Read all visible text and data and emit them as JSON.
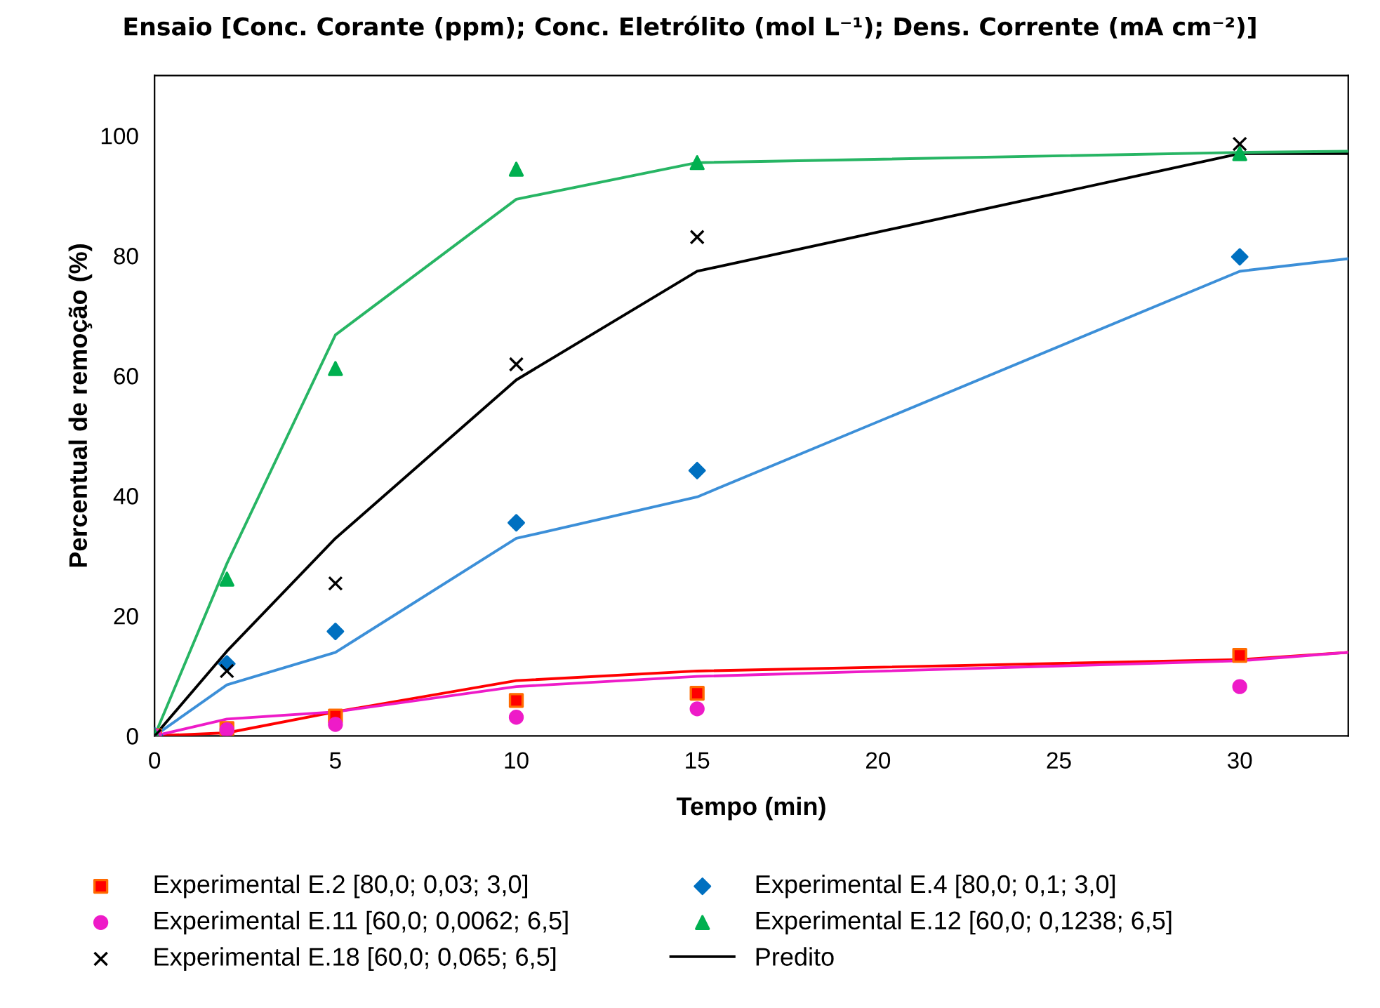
{
  "chart_data": {
    "type": "scatter",
    "title": "Ensaio [Conc. Corante (ppm); Conc. Eletrólito (mol L⁻¹); Dens. Corrente (mA cm⁻²)]",
    "xlabel": "Tempo (min)",
    "ylabel": "Percentual de remoção (%)",
    "xlim": [
      0,
      33
    ],
    "ylim": [
      0,
      110
    ],
    "xticks": [
      0,
      5,
      10,
      15,
      20,
      25,
      30
    ],
    "yticks": [
      0,
      20,
      40,
      60,
      80,
      100
    ],
    "grid": false,
    "legend": "bottom",
    "series": [
      {
        "name": "Experimental E.2 [80,0; 0,03; 3,0]",
        "type": "scatter",
        "marker": "square",
        "color": "#ff0000",
        "x": [
          0,
          2,
          5,
          10,
          15,
          30
        ],
        "values": [
          0,
          1.2,
          3.3,
          5.9,
          7.1,
          13.4
        ]
      },
      {
        "name": "Experimental E.4 [80,0; 0,1; 3,0]",
        "type": "scatter",
        "marker": "diamond",
        "color": "#0070c0",
        "x": [
          0,
          2,
          5,
          10,
          15,
          30
        ],
        "values": [
          0,
          12,
          17.4,
          35.5,
          44.2,
          79.8
        ]
      },
      {
        "name": "Experimental E.11 [60,0; 0,0062; 6,5]",
        "type": "scatter",
        "marker": "circle",
        "color": "#ee1bc8",
        "x": [
          0,
          2,
          5,
          10,
          15,
          30
        ],
        "values": [
          0,
          1.0,
          1.9,
          3.1,
          4.5,
          8.2
        ]
      },
      {
        "name": "Experimental E.12 [60,0; 0,1238; 6,5]",
        "type": "scatter",
        "marker": "triangle",
        "color": "#00b050",
        "x": [
          0,
          2,
          5,
          10,
          15,
          30
        ],
        "values": [
          0,
          26.1,
          61.2,
          94.4,
          95.5,
          97
        ]
      },
      {
        "name": "Experimental E.18 [60,0; 0,065; 6,5]",
        "type": "scatter",
        "marker": "cross",
        "color": "#000000",
        "x": [
          0,
          2,
          5,
          10,
          15,
          30
        ],
        "values": [
          0,
          10.8,
          25.4,
          61.9,
          83.1,
          98.6
        ]
      },
      {
        "name": "Predito",
        "type": "line",
        "color": "#000000",
        "x": [
          0,
          2,
          5,
          10,
          15,
          30,
          33
        ],
        "values": [
          0,
          14.1,
          32.9,
          59.3,
          77.4,
          97,
          97
        ]
      },
      {
        "type": "line",
        "color": "#ff0000",
        "x": [
          0,
          2,
          5,
          10,
          15,
          30,
          33
        ],
        "values": [
          0,
          0.5,
          4.0,
          9.2,
          10.8,
          12.7,
          13.9
        ]
      },
      {
        "type": "line",
        "color": "#ee1bc8",
        "x": [
          0,
          2,
          5,
          10,
          15,
          30,
          33
        ],
        "values": [
          0,
          2.8,
          4.0,
          8.2,
          9.9,
          12.5,
          13.9
        ]
      },
      {
        "type": "line",
        "color": "#3c8fd8",
        "x": [
          0,
          2,
          5,
          10,
          15,
          30,
          33
        ],
        "values": [
          0,
          8.5,
          13.9,
          32.9,
          39.8,
          77.4,
          79.5
        ]
      },
      {
        "type": "line",
        "color": "#27b564",
        "x": [
          0,
          2,
          5,
          10,
          15,
          30,
          33
        ],
        "values": [
          0,
          28.7,
          66.8,
          89.4,
          95.5,
          97.2,
          97.4
        ]
      }
    ]
  }
}
